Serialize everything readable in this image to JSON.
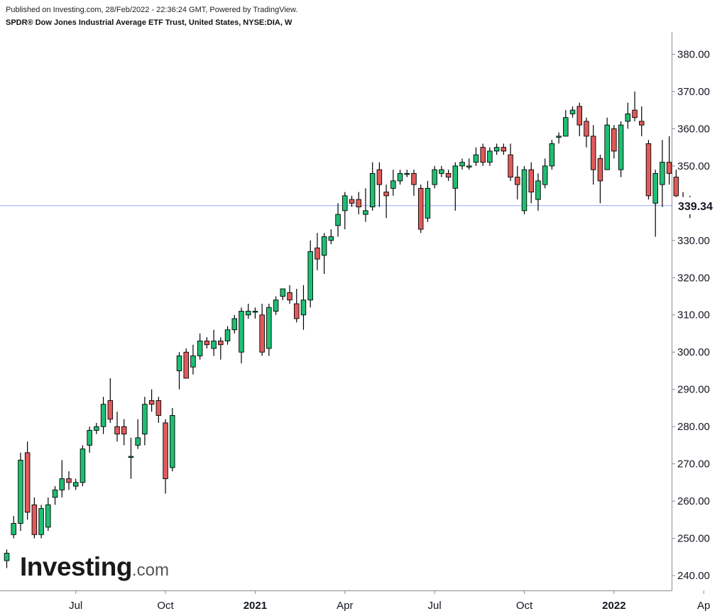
{
  "header": {
    "published": "Published on Investing.com, 28/Feb/2022 - 22:36:24 GMT, Powered by TradingView.",
    "title": "SPDR® Dow Jones Industrial Average ETF Trust, United States, NYSE:DIA, W"
  },
  "logo": {
    "main": "Investing",
    "suffix": ".com"
  },
  "colors": {
    "up": "#26a69a",
    "up_fill": "#1fbf73",
    "down": "#e05a5a",
    "wick": "#000000",
    "price_line": "#8fa9f5",
    "price_label_bg": "#ffffff"
  },
  "chart_data": {
    "type": "candlestick",
    "interval": "W",
    "y_axis": {
      "range": [
        236,
        386
      ],
      "ticks": [
        "240.00",
        "250.00",
        "260.00",
        "270.00",
        "280.00",
        "290.00",
        "300.00",
        "310.00",
        "320.00",
        "330.00",
        "340.00",
        "350.00",
        "360.00",
        "370.00",
        "380.00"
      ],
      "position": "right"
    },
    "x_axis": {
      "ticks": [
        {
          "label": "Jul",
          "bold": false,
          "idx": 10
        },
        {
          "label": "Oct",
          "bold": false,
          "idx": 23
        },
        {
          "label": "2021",
          "bold": true,
          "idx": 36
        },
        {
          "label": "Apr",
          "bold": false,
          "idx": 49
        },
        {
          "label": "Jul",
          "bold": false,
          "idx": 62
        },
        {
          "label": "Oct",
          "bold": false,
          "idx": 75
        },
        {
          "label": "2022",
          "bold": true,
          "idx": 88
        },
        {
          "label": "Ap",
          "bold": false,
          "idx": 101
        }
      ]
    },
    "last_price": 339.34,
    "last_price_label": "339.34",
    "candles": [
      [
        244,
        246,
        242,
        247
      ],
      [
        251,
        254,
        250,
        256
      ],
      [
        254,
        271,
        252,
        273
      ],
      [
        273,
        257,
        255,
        276
      ],
      [
        259,
        251,
        250,
        261
      ],
      [
        251,
        258,
        250,
        259
      ],
      [
        253,
        259,
        252,
        261
      ],
      [
        261,
        263,
        259,
        264
      ],
      [
        263,
        266,
        261,
        271
      ],
      [
        266,
        265,
        263,
        268
      ],
      [
        264,
        265,
        263,
        266
      ],
      [
        265,
        274,
        264,
        275
      ],
      [
        275,
        279,
        273,
        280
      ],
      [
        279,
        280,
        278,
        281
      ],
      [
        280,
        286,
        278,
        288
      ],
      [
        287,
        282,
        281,
        293
      ],
      [
        280,
        278,
        276,
        284
      ],
      [
        280,
        278,
        275,
        282
      ],
      [
        272,
        272,
        266,
        277
      ],
      [
        275,
        277,
        274,
        282
      ],
      [
        278,
        286,
        275,
        288
      ],
      [
        287,
        286,
        284,
        290
      ],
      [
        287,
        283,
        281,
        288
      ],
      [
        281,
        266,
        262,
        282
      ],
      [
        269,
        283,
        268,
        285
      ],
      [
        295,
        299,
        290,
        300
      ],
      [
        300,
        293,
        293,
        301
      ],
      [
        296,
        299,
        294,
        302
      ],
      [
        299,
        303,
        298,
        305
      ],
      [
        303,
        302,
        301,
        304
      ],
      [
        301,
        303,
        299,
        306
      ],
      [
        303,
        302,
        298,
        304
      ],
      [
        303,
        306,
        302,
        307
      ],
      [
        306,
        309,
        305,
        310
      ],
      [
        300,
        311,
        297,
        312
      ],
      [
        310,
        311,
        309,
        313
      ],
      [
        311,
        311,
        309,
        312
      ],
      [
        310,
        300,
        299,
        313
      ],
      [
        301,
        312,
        299,
        313
      ],
      [
        311,
        314,
        310,
        315
      ],
      [
        315,
        317,
        314,
        317
      ],
      [
        316,
        314,
        313,
        318
      ],
      [
        313,
        309,
        308,
        317
      ],
      [
        310,
        314,
        306,
        318
      ],
      [
        314,
        327,
        312,
        330
      ],
      [
        328,
        325,
        322,
        332
      ],
      [
        326,
        331,
        321,
        332
      ],
      [
        330,
        331,
        329,
        333
      ],
      [
        334,
        337,
        331,
        340
      ],
      [
        338,
        342,
        333,
        343
      ],
      [
        341,
        340,
        339,
        342
      ],
      [
        341,
        339,
        337,
        343
      ],
      [
        337,
        338,
        335,
        344
      ],
      [
        339,
        348,
        338,
        351
      ],
      [
        349,
        345,
        339,
        351
      ],
      [
        343,
        342,
        336,
        345
      ],
      [
        344,
        346,
        342,
        349
      ],
      [
        346,
        348,
        345,
        349
      ],
      [
        348,
        348,
        347,
        349
      ],
      [
        348,
        345,
        342,
        349
      ],
      [
        344,
        333,
        332,
        345
      ],
      [
        336,
        344,
        335,
        346
      ],
      [
        345,
        349,
        344,
        350
      ],
      [
        348,
        349,
        347,
        350
      ],
      [
        348,
        347,
        346,
        349
      ],
      [
        344,
        350,
        338,
        351
      ],
      [
        350,
        351,
        349,
        352
      ],
      [
        350,
        350,
        349,
        352
      ],
      [
        351,
        353,
        350,
        355
      ],
      [
        355,
        351,
        350,
        356
      ],
      [
        351,
        354,
        350,
        355
      ],
      [
        354,
        355,
        353,
        356
      ],
      [
        355,
        354,
        353,
        356
      ],
      [
        353,
        347,
        346,
        356
      ],
      [
        347,
        345,
        341,
        350
      ],
      [
        338,
        349,
        337,
        350
      ],
      [
        349,
        343,
        340,
        351
      ],
      [
        341,
        346,
        338,
        348
      ],
      [
        345,
        350,
        344,
        352
      ],
      [
        350,
        356,
        349,
        357
      ],
      [
        358,
        358,
        356,
        359
      ],
      [
        358,
        363,
        358,
        365
      ],
      [
        364,
        365,
        363,
        366
      ],
      [
        366,
        361,
        358,
        367
      ],
      [
        362,
        358,
        355,
        363
      ],
      [
        358,
        349,
        345,
        361
      ],
      [
        352,
        346,
        340,
        353
      ],
      [
        349,
        361,
        349,
        363
      ],
      [
        360,
        354,
        352,
        361
      ],
      [
        349,
        361,
        347,
        362
      ],
      [
        362,
        364,
        360,
        367
      ],
      [
        365,
        363,
        362,
        370
      ],
      [
        362,
        361,
        358,
        366
      ],
      [
        356,
        342,
        341,
        357
      ],
      [
        340,
        348,
        331,
        349
      ],
      [
        345,
        351,
        339,
        357
      ],
      [
        351,
        348,
        345,
        358
      ],
      [
        347,
        342,
        340,
        349
      ],
      [
        341,
        341,
        339,
        343
      ],
      [
        341,
        339,
        336,
        342
      ]
    ],
    "candles_note": "[open, close, low, high]"
  }
}
